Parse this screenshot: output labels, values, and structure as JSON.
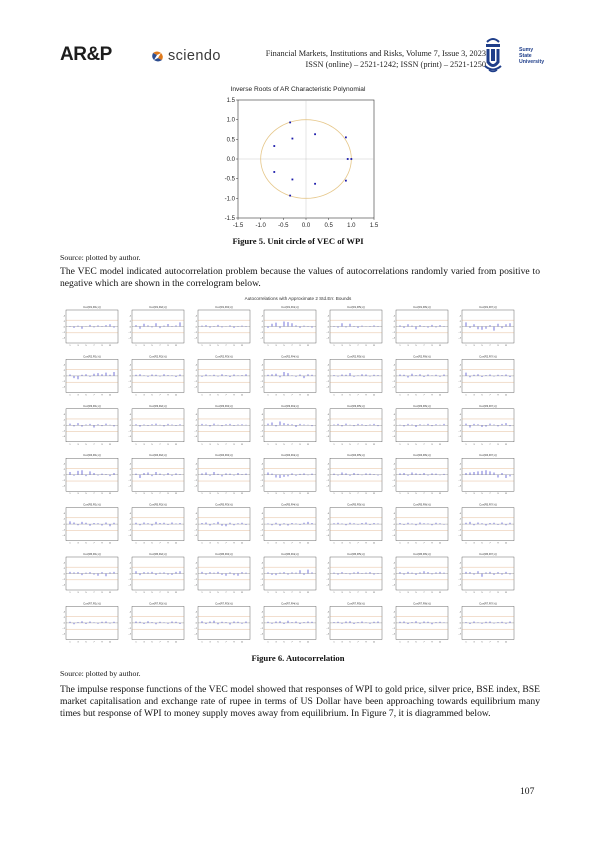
{
  "header": {
    "logo_left": "AR&P",
    "logo_middle": "sciendo",
    "journal_line1": "Financial Markets, Institutions and Risks, Volume 7, Issue 3, 2023",
    "journal_line2": "ISSN (online) – 2521-1242; ISSN (print) – 2521-1250",
    "university_line1": "Sumy",
    "university_line2": "State",
    "university_line3": "University"
  },
  "figure5": {
    "title": "Inverse Roots of AR Characteristic Polynomial",
    "caption": "Figure 5. Unit circle of VEC of WPI",
    "source": "Source: plotted by author.",
    "chart_data": {
      "type": "scatter",
      "title": "Inverse Roots of AR Characteristic Polynomial",
      "xlim": [
        -1.5,
        1.5
      ],
      "ylim": [
        -1.5,
        1.5
      ],
      "x_ticks": [
        "-1.5",
        "-1.0",
        "-0.5",
        "0.0",
        "0.5",
        "1.0",
        "1.5"
      ],
      "y_ticks": [
        "1.5",
        "1.0",
        "0.5",
        "0.0",
        "-0.5",
        "-1.0",
        "-1.5"
      ],
      "unit_circle": true,
      "points": [
        {
          "x": -0.35,
          "y": 0.93
        },
        {
          "x": 0.2,
          "y": 0.63
        },
        {
          "x": 0.88,
          "y": 0.55
        },
        {
          "x": -0.3,
          "y": 0.52
        },
        {
          "x": -0.7,
          "y": 0.33
        },
        {
          "x": 0.92,
          "y": 0.0
        },
        {
          "x": 1.0,
          "y": 0.0
        },
        {
          "x": -0.7,
          "y": -0.33
        },
        {
          "x": -0.3,
          "y": -0.52
        },
        {
          "x": 0.88,
          "y": -0.55
        },
        {
          "x": 0.2,
          "y": -0.63
        },
        {
          "x": -0.35,
          "y": -0.93
        }
      ]
    }
  },
  "paragraph1": "The VEC model indicated autocorrelation problem because the values of autocorrelations randomly varied from positive to negative which are shown in the correlogram below.",
  "figure6": {
    "title": "Autocorrelations with Approximate 2 Std.Err. Bounds",
    "caption": "Figure 6. Autocorrelation",
    "source": "Source: plotted by author.",
    "chart_data": {
      "type": "bar",
      "layout": "7x7 grid of correlograms",
      "lags": [
        1,
        2,
        3,
        4,
        5,
        6,
        7,
        8,
        9,
        10,
        11,
        12
      ],
      "panel_titles": [
        [
          "Cor(R1,R1(-i))",
          "Cor(R1,R2(-i))",
          "Cor(R1,R3(-i))",
          "Cor(R1,R4(-i))",
          "Cor(R1,R5(-i))",
          "Cor(R1,R6(-i))",
          "Cor(R1,R7(-i))"
        ],
        [
          "Cor(R2,R1(-i))",
          "Cor(R2,R2(-i))",
          "Cor(R2,R3(-i))",
          "Cor(R2,R4(-i))",
          "Cor(R2,R5(-i))",
          "Cor(R2,R6(-i))",
          "Cor(R2,R7(-i))"
        ],
        [
          "Cor(R3,R1(-i))",
          "Cor(R3,R2(-i))",
          "Cor(R3,R3(-i))",
          "Cor(R3,R4(-i))",
          "Cor(R3,R5(-i))",
          "Cor(R3,R6(-i))",
          "Cor(R3,R7(-i))"
        ],
        [
          "Cor(R4,R1(-i))",
          "Cor(R4,R2(-i))",
          "Cor(R4,R3(-i))",
          "Cor(R4,R4(-i))",
          "Cor(R4,R5(-i))",
          "Cor(R4,R6(-i))",
          "Cor(R4,R7(-i))"
        ],
        [
          "Cor(R5,R1(-i))",
          "Cor(R5,R2(-i))",
          "Cor(R5,R3(-i))",
          "Cor(R5,R4(-i))",
          "Cor(R5,R5(-i))",
          "Cor(R5,R6(-i))",
          "Cor(R5,R7(-i))"
        ],
        [
          "Cor(R6,R1(-i))",
          "Cor(R6,R2(-i))",
          "Cor(R6,R3(-i))",
          "Cor(R6,R4(-i))",
          "Cor(R6,R5(-i))",
          "Cor(R6,R6(-i))",
          "Cor(R6,R7(-i))"
        ],
        [
          "Cor(R7,R1(-i))",
          "Cor(R7,R2(-i))",
          "Cor(R7,R3(-i))",
          "Cor(R7,R4(-i))",
          "Cor(R7,R5(-i))",
          "Cor(R7,R6(-i))",
          "Cor(R7,R7(-i))"
        ]
      ],
      "ylim": [
        -0.6,
        0.6
      ],
      "y_ticks": [
        ".4",
        ".2",
        ".0",
        "-.2",
        "-.4"
      ],
      "x_ticks": [
        "1",
        "2",
        "3",
        "4",
        "5",
        "6",
        "7",
        "8",
        "9",
        "10",
        "11",
        "12"
      ],
      "bound": 0.23,
      "values": [
        [
          [
            0.02,
            -0.05,
            0.03,
            -0.08,
            0.01,
            0.06,
            -0.03,
            0.04,
            -0.02,
            0.05,
            0.08,
            -0.04
          ],
          [
            0.05,
            -0.08,
            0.1,
            0.04,
            -0.03,
            0.12,
            -0.06,
            0.03,
            0.09,
            -0.02,
            0.04,
            0.15
          ],
          [
            0.03,
            0.05,
            -0.04,
            0.02,
            0.06,
            -0.03,
            0.01,
            0.04,
            -0.05,
            0.02,
            0.03,
            -0.02
          ],
          [
            -0.05,
            0.1,
            0.14,
            -0.06,
            0.18,
            0.16,
            0.12,
            0.04,
            -0.05,
            0.03,
            0.02,
            -0.04
          ],
          [
            0.02,
            -0.04,
            0.12,
            -0.03,
            0.1,
            0.02,
            -0.05,
            0.03,
            0.01,
            -0.02,
            0.04,
            0.02
          ],
          [
            0.04,
            -0.05,
            0.08,
            0.03,
            -0.1,
            0.05,
            0.02,
            -0.04,
            0.06,
            -0.03,
            0.05,
            0.02
          ],
          [
            0.15,
            -0.05,
            0.08,
            -0.1,
            -0.12,
            -0.08,
            0.05,
            -0.15,
            0.1,
            -0.06,
            0.08,
            0.12
          ]
        ],
        [
          [
            0.05,
            -0.08,
            -0.12,
            0.04,
            0.06,
            -0.03,
            0.08,
            0.1,
            0.06,
            0.12,
            0.04,
            0.14
          ],
          [
            0.04,
            0.06,
            0.02,
            -0.03,
            0.05,
            0.04,
            -0.02,
            0.06,
            0.03,
            0.02,
            -0.04,
            0.05
          ],
          [
            -0.03,
            0.05,
            0.02,
            0.04,
            -0.02,
            0.06,
            0.03,
            -0.04,
            0.05,
            0.02,
            0.03,
            0.06
          ],
          [
            0.04,
            0.06,
            0.08,
            -0.05,
            0.14,
            0.1,
            0.02,
            -0.03,
            0.05,
            -0.08,
            0.06,
            0.04
          ],
          [
            0.03,
            -0.02,
            0.05,
            0.04,
            0.1,
            -0.03,
            0.02,
            0.06,
            0.05,
            -0.02,
            0.04,
            0.03
          ],
          [
            0.05,
            0.04,
            -0.06,
            0.08,
            0.03,
            0.06,
            -0.04,
            0.05,
            0.02,
            0.04,
            -0.03,
            0.05
          ],
          [
            0.12,
            -0.05,
            0.04,
            0.06,
            -0.04,
            0.03,
            0.05,
            -0.02,
            0.04,
            0.03,
            0.05,
            -0.04
          ]
        ],
        [
          [
            0.06,
            -0.04,
            0.08,
            -0.05,
            0.03,
            0.05,
            -0.08,
            0.04,
            -0.03,
            0.06,
            0.02,
            -0.04
          ],
          [
            0.04,
            -0.05,
            0.03,
            -0.02,
            0.04,
            0.06,
            0.02,
            -0.04,
            0.05,
            0.03,
            -0.02,
            0.04
          ],
          [
            0.05,
            0.03,
            -0.04,
            0.06,
            0.02,
            -0.03,
            0.04,
            0.05,
            -0.02,
            0.03,
            0.04,
            0.02
          ],
          [
            0.06,
            0.1,
            -0.04,
            0.14,
            0.08,
            0.05,
            0.04,
            -0.06,
            0.05,
            0.03,
            0.02,
            -0.03
          ],
          [
            0.03,
            0.05,
            -0.04,
            0.06,
            0.02,
            -0.03,
            0.05,
            0.04,
            -0.02,
            0.03,
            0.05,
            -0.03
          ],
          [
            0.02,
            -0.04,
            0.05,
            0.03,
            -0.06,
            0.04,
            0.02,
            0.05,
            -0.03,
            0.04,
            0.02,
            0.05
          ],
          [
            0.06,
            -0.08,
            0.05,
            0.04,
            -0.06,
            -0.05,
            0.06,
            0.03,
            -0.04,
            0.05,
            0.08,
            -0.03
          ]
        ],
        [
          [
            0.1,
            -0.04,
            0.14,
            0.16,
            -0.05,
            0.12,
            0.06,
            -0.03,
            0.04,
            0.02,
            -0.05,
            0.06
          ],
          [
            0.04,
            -0.12,
            0.06,
            0.08,
            -0.05,
            0.1,
            0.04,
            -0.03,
            0.06,
            -0.04,
            0.05,
            0.02
          ],
          [
            0.05,
            0.08,
            -0.04,
            0.1,
            0.03,
            -0.06,
            0.05,
            0.04,
            -0.03,
            0.06,
            0.02,
            0.04
          ],
          [
            0.08,
            0.04,
            -0.1,
            -0.12,
            -0.08,
            -0.06,
            0.05,
            -0.04,
            0.03,
            0.05,
            -0.02,
            0.04
          ],
          [
            0.04,
            -0.03,
            0.08,
            0.05,
            -0.04,
            0.06,
            0.03,
            -0.02,
            0.05,
            0.04,
            0.02,
            -0.03
          ],
          [
            0.05,
            0.06,
            -0.04,
            0.08,
            0.05,
            0.03,
            0.06,
            -0.03,
            0.05,
            0.04,
            -0.02,
            0.03
          ],
          [
            0.06,
            0.08,
            0.1,
            0.12,
            0.14,
            0.16,
            0.12,
            0.08,
            -0.1,
            0.06,
            -0.12,
            -0.06
          ]
        ],
        [
          [
            0.1,
            0.06,
            -0.04,
            0.08,
            0.05,
            -0.06,
            0.04,
            0.03,
            -0.05,
            0.06,
            -0.08,
            0.05
          ],
          [
            0.05,
            -0.04,
            0.06,
            0.03,
            -0.05,
            0.08,
            0.04,
            0.05,
            -0.03,
            0.06,
            0.02,
            0.04
          ],
          [
            0.04,
            0.06,
            -0.05,
            0.03,
            0.08,
            -0.06,
            -0.08,
            0.05,
            -0.04,
            0.03,
            0.05,
            -0.03
          ],
          [
            0.02,
            -0.04,
            0.05,
            -0.06,
            0.03,
            -0.05,
            0.04,
            0.02,
            -0.03,
            0.05,
            0.08,
            0.04
          ],
          [
            0.03,
            0.05,
            0.02,
            -0.04,
            0.05,
            0.03,
            -0.02,
            0.04,
            0.06,
            -0.03,
            0.04,
            0.02
          ],
          [
            0.04,
            -0.03,
            0.05,
            0.02,
            -0.04,
            0.06,
            0.03,
            0.02,
            -0.04,
            0.05,
            0.03,
            -0.02
          ],
          [
            0.05,
            0.08,
            -0.04,
            0.06,
            0.03,
            -0.05,
            0.04,
            0.05,
            -0.03,
            0.06,
            -0.04,
            0.05
          ]
        ],
        [
          [
            0.06,
            0.04,
            0.05,
            -0.06,
            0.03,
            0.05,
            -0.04,
            -0.08,
            0.05,
            -0.1,
            0.04,
            0.06
          ],
          [
            0.08,
            -0.06,
            0.05,
            0.04,
            0.06,
            -0.05,
            0.03,
            0.04,
            -0.04,
            -0.05,
            0.06,
            0.08
          ],
          [
            0.06,
            -0.04,
            0.05,
            0.03,
            0.06,
            -0.05,
            -0.08,
            0.04,
            -0.06,
            -0.08,
            0.05,
            0.03
          ],
          [
            0.04,
            -0.05,
            -0.06,
            0.03,
            0.05,
            -0.04,
            0.04,
            0.03,
            0.12,
            -0.05,
            0.14,
            0.04
          ],
          [
            0.03,
            -0.04,
            0.05,
            0.02,
            -0.03,
            0.04,
            0.06,
            -0.02,
            0.03,
            0.05,
            -0.04,
            0.02
          ],
          [
            0.05,
            -0.04,
            0.06,
            0.03,
            -0.05,
            0.04,
            0.08,
            0.05,
            -0.03,
            0.04,
            0.06,
            0.03
          ],
          [
            0.06,
            0.05,
            -0.04,
            0.08,
            -0.12,
            0.04,
            0.06,
            -0.05,
            0.05,
            -0.04,
            0.06,
            -0.03
          ]
        ],
        [
          [
            0.04,
            -0.05,
            0.03,
            0.06,
            -0.04,
            0.05,
            0.02,
            -0.03,
            0.04,
            0.05,
            -0.02,
            0.04
          ],
          [
            0.05,
            0.04,
            -0.04,
            0.06,
            0.03,
            -0.05,
            0.04,
            0.02,
            -0.03,
            0.05,
            0.04,
            -0.04
          ],
          [
            0.06,
            -0.04,
            0.05,
            0.08,
            -0.05,
            0.04,
            0.03,
            -0.06,
            0.05,
            0.04,
            -0.03,
            0.05
          ],
          [
            0.04,
            -0.03,
            0.05,
            0.06,
            -0.04,
            0.08,
            0.03,
            0.05,
            -0.04,
            0.03,
            0.05,
            0.04
          ],
          [
            0.03,
            0.04,
            -0.03,
            0.05,
            0.06,
            -0.04,
            0.03,
            0.05,
            0.02,
            -0.03,
            0.04,
            0.05
          ],
          [
            0.04,
            0.05,
            -0.04,
            0.03,
            0.06,
            -0.03,
            0.05,
            0.04,
            -0.05,
            0.03,
            0.04,
            0.02
          ],
          [
            0.03,
            -0.04,
            0.05,
            0.02,
            -0.03,
            0.04,
            0.05,
            -0.02,
            0.03,
            0.04,
            -0.03,
            0.05
          ]
        ]
      ]
    }
  },
  "paragraph2": "The impulse response functions of the VEC model showed that responses of WPI to gold price, silver price, BSE index, BSE market capitalisation and exchange rate of rupee in terms of US Dollar have been approaching towards equilibrium many times but response of WPI to money supply moves away from equilibrium. In Figure 7, it is diagrammed below.",
  "page_number": "107",
  "colors": {
    "accent_blue": "#1f3e8a",
    "point_blue": "#1a1aaa",
    "circle": "#e6c78a",
    "bars": "#3a3acc",
    "bounds": "#d9a070"
  }
}
